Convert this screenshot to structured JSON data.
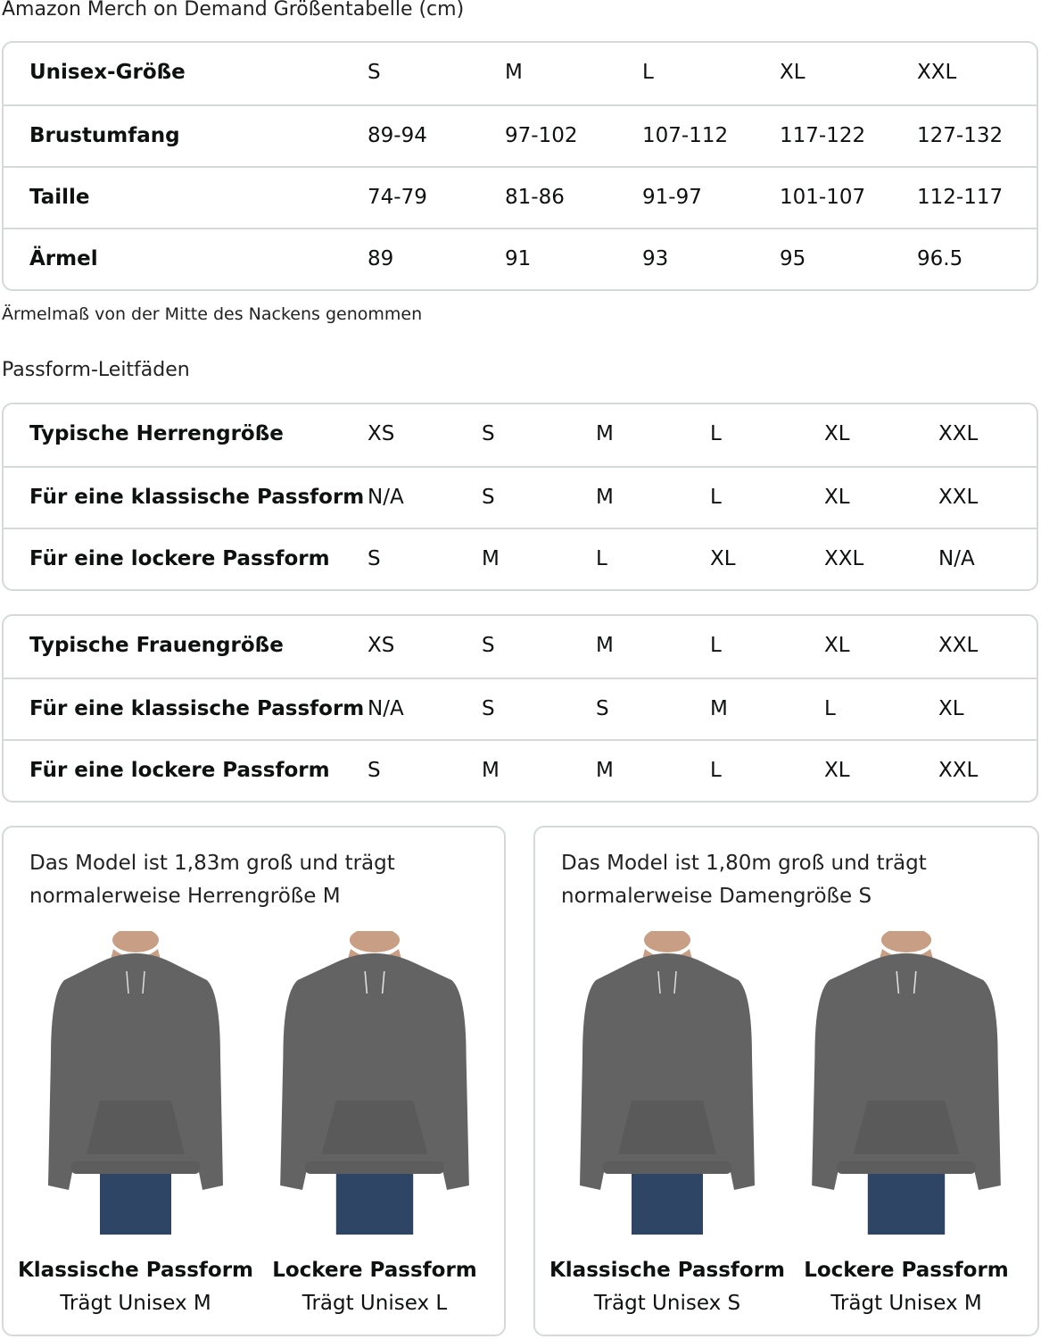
{
  "title": "Amazon Merch on Demand Größentabelle (cm)",
  "unisex_table": {
    "rows": [
      [
        "Unisex-Größe",
        "S",
        "M",
        "L",
        "XL",
        "XXL"
      ],
      [
        "Brustumfang",
        "89-94",
        "97-102",
        "107-112",
        "117-122",
        "127-132"
      ],
      [
        "Taille",
        "74-79",
        "81-86",
        "91-97",
        "101-107",
        "112-117"
      ],
      [
        "Ärmel",
        "89",
        "91",
        "93",
        "95",
        "96.5"
      ]
    ]
  },
  "sleeve_note": "Ärmelmaß von der Mitte des Nackens genommen",
  "fit_guides_title": "Passform-Leitfäden",
  "men_table": {
    "rows": [
      [
        "Typische Herrengröße",
        "XS",
        "S",
        "M",
        "L",
        "XL",
        "XXL"
      ],
      [
        "Für eine klassische Passform",
        "N/A",
        "S",
        "M",
        "L",
        "XL",
        "XXL"
      ],
      [
        "Für eine lockere Passform",
        "S",
        "M",
        "L",
        "XL",
        "XXL",
        "N/A"
      ]
    ]
  },
  "women_table": {
    "rows": [
      [
        "Typische Frauengröße",
        "XS",
        "S",
        "M",
        "L",
        "XL",
        "XXL"
      ],
      [
        "Für eine klassische Passform",
        "N/A",
        "S",
        "S",
        "M",
        "L",
        "XL"
      ],
      [
        "Für eine lockere Passform",
        "S",
        "M",
        "M",
        "L",
        "XL",
        "XXL"
      ]
    ]
  },
  "cards": [
    {
      "intro": "Das Model ist 1,83m groß und trägt normalerweise Herrengröße M",
      "figures": [
        {
          "title": "Klassische Passform",
          "caption": "Trägt Unisex M"
        },
        {
          "title": "Lockere Passform",
          "caption": "Trägt Unisex L"
        }
      ]
    },
    {
      "intro": "Das Model ist 1,80m groß und trägt normalerweise Damengröße S",
      "figures": [
        {
          "title": "Klassische Passform",
          "caption": "Trägt Unisex S"
        },
        {
          "title": "Lockere Passform",
          "caption": "Trägt Unisex M"
        }
      ]
    }
  ],
  "colors": {
    "hoodie": "#636363",
    "jeans": "#2f4566",
    "border": "#d5d9d9"
  }
}
